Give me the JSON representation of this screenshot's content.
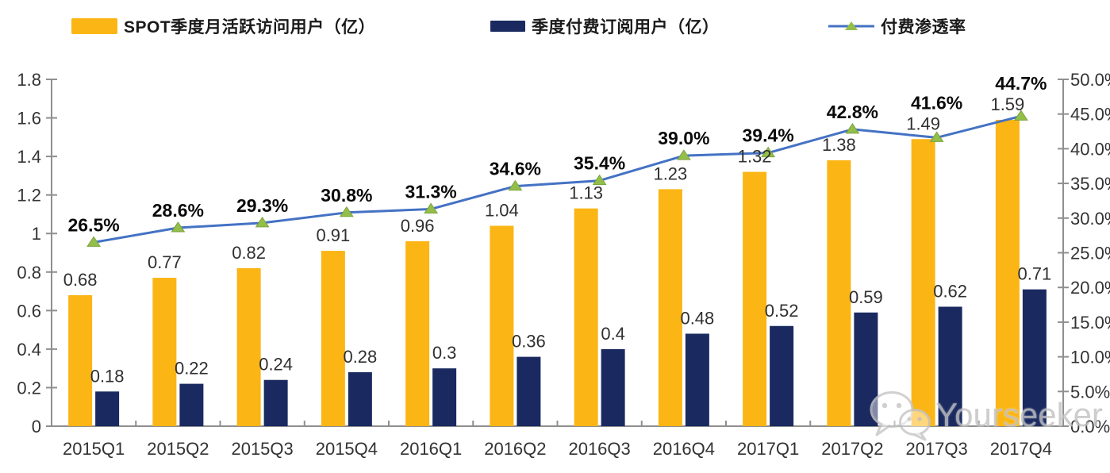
{
  "legend": {
    "items": [
      {
        "label": "SPOT季度月活跃访问用户（亿）",
        "swatch": "bar",
        "color": "#FBB514"
      },
      {
        "label": "季度付费订阅用户（亿）",
        "swatch": "bar",
        "color": "#1A2A60"
      },
      {
        "label": "付费渗透率",
        "swatch": "line-marker",
        "color": "#4472C4",
        "marker_color": "#94BE4A"
      }
    ]
  },
  "chart_data": {
    "type": "bar",
    "subtype": "combo-bar-line-dual-axis",
    "categories": [
      "2015Q1",
      "2015Q2",
      "2015Q3",
      "2015Q4",
      "2016Q1",
      "2016Q2",
      "2016Q3",
      "2016Q4",
      "2017Q1",
      "2017Q2",
      "2017Q3",
      "2017Q4"
    ],
    "series": [
      {
        "name": "SPOT季度月活跃访问用户（亿）",
        "type": "bar",
        "axis": "left",
        "color": "#FBB514",
        "values": [
          0.68,
          0.77,
          0.82,
          0.91,
          0.96,
          1.04,
          1.13,
          1.23,
          1.32,
          1.38,
          1.49,
          1.59
        ],
        "labels": [
          "0.68",
          "0.77",
          "0.82",
          "0.91",
          "0.96",
          "1.04",
          "1.13",
          "1.23",
          "1.32",
          "1.38",
          "1.49",
          "1.59"
        ]
      },
      {
        "name": "季度付费订阅用户（亿）",
        "type": "bar",
        "axis": "left",
        "color": "#1A2A60",
        "values": [
          0.18,
          0.22,
          0.24,
          0.28,
          0.3,
          0.36,
          0.4,
          0.48,
          0.52,
          0.59,
          0.62,
          0.71
        ],
        "labels": [
          "0.18",
          "0.22",
          "0.24",
          "0.28",
          "0.3",
          "0.36",
          "0.4",
          "0.48",
          "0.52",
          "0.59",
          "0.62",
          "0.71"
        ]
      },
      {
        "name": "付费渗透率",
        "type": "line",
        "axis": "right",
        "color": "#4472C4",
        "marker": "triangle",
        "marker_color": "#94BE4A",
        "values": [
          26.5,
          28.6,
          29.3,
          30.8,
          31.3,
          34.6,
          35.4,
          39.0,
          39.4,
          42.8,
          41.6,
          44.7
        ],
        "labels": [
          "26.5%",
          "28.6%",
          "29.3%",
          "30.8%",
          "31.3%",
          "34.6%",
          "35.4%",
          "39.0%",
          "39.4%",
          "42.8%",
          "41.6%",
          "44.7%"
        ]
      }
    ],
    "axes": {
      "left": {
        "min": 0,
        "max": 1.8,
        "tick_labels": [
          "0",
          "0.2",
          "0.4",
          "0.6",
          "0.8",
          "1",
          "1.2",
          "1.4",
          "1.6",
          "1.8"
        ]
      },
      "right": {
        "min": 0,
        "max": 50,
        "tick_labels": [
          "0.0%",
          "5.0%",
          "10.0%",
          "15.0%",
          "20.0%",
          "25.0%",
          "30.0%",
          "35.0%",
          "40.0%",
          "45.0%",
          "50.0%"
        ]
      },
      "x": {
        "tick_labels": [
          "2015Q1",
          "2015Q2",
          "2015Q3",
          "2015Q4",
          "2016Q1",
          "2016Q2",
          "2016Q3",
          "2016Q4",
          "2017Q1",
          "2017Q2",
          "2017Q3",
          "2017Q4"
        ]
      }
    },
    "grid": false,
    "legend_position": "top"
  },
  "watermark": {
    "text": "Yourseeker",
    "icon": "wechat-icon"
  },
  "colors": {
    "axis_line": "#8f8f8f",
    "tick_label": "#333333",
    "value_label": "#303030",
    "pct_label": "#0a0a0a",
    "watermark": "#c3c3c3"
  }
}
